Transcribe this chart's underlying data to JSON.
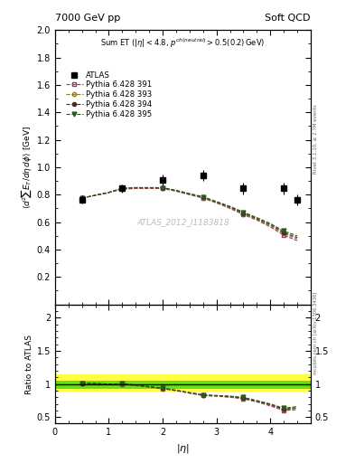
{
  "title_left": "7000 GeV pp",
  "title_right": "Soft QCD",
  "annotation": "ATLAS_2012_I1183818",
  "ylabel_main": "$\\langle d^2\\!\\sum E_T/d\\eta\\,d\\phi\\rangle$ [GeV]",
  "ylabel_ratio": "Ratio to ATLAS",
  "xlabel": "$|\\eta|$",
  "xlim": [
    0,
    4.75
  ],
  "ylim_main": [
    0.0,
    2.0
  ],
  "ylim_ratio": [
    0.4,
    2.2
  ],
  "yticks_main": [
    0.2,
    0.4,
    0.6,
    0.8,
    1.0,
    1.2,
    1.4,
    1.6,
    1.8,
    2.0
  ],
  "yticks_ratio": [
    0.5,
    1.0,
    1.5,
    2.0
  ],
  "atlas_x": [
    0.5,
    1.25,
    2.0,
    2.75,
    3.5,
    4.25,
    4.5
  ],
  "atlas_y": [
    0.765,
    0.845,
    0.91,
    0.94,
    0.845,
    0.845,
    0.76
  ],
  "atlas_yerr": [
    0.03,
    0.03,
    0.04,
    0.04,
    0.04,
    0.04,
    0.04
  ],
  "atlas_xw": [
    0.375,
    0.375,
    0.375,
    0.375,
    0.375,
    0.375,
    0.25
  ],
  "mc_x": [
    0.5,
    0.75,
    1.0,
    1.25,
    1.5,
    1.75,
    2.0,
    2.25,
    2.5,
    2.75,
    3.0,
    3.25,
    3.5,
    3.75,
    4.0,
    4.25,
    4.5
  ],
  "mc391_y": [
    0.775,
    0.795,
    0.815,
    0.84,
    0.845,
    0.845,
    0.845,
    0.825,
    0.8,
    0.775,
    0.74,
    0.7,
    0.655,
    0.615,
    0.565,
    0.505,
    0.465
  ],
  "mc393_y": [
    0.775,
    0.795,
    0.815,
    0.845,
    0.848,
    0.848,
    0.848,
    0.828,
    0.802,
    0.778,
    0.742,
    0.704,
    0.66,
    0.62,
    0.574,
    0.517,
    0.478
  ],
  "mc394_y": [
    0.775,
    0.796,
    0.816,
    0.846,
    0.85,
    0.85,
    0.85,
    0.83,
    0.805,
    0.782,
    0.747,
    0.71,
    0.666,
    0.626,
    0.582,
    0.524,
    0.488
  ],
  "mc395_y": [
    0.775,
    0.796,
    0.817,
    0.847,
    0.852,
    0.852,
    0.851,
    0.832,
    0.808,
    0.785,
    0.75,
    0.715,
    0.673,
    0.633,
    0.59,
    0.535,
    0.5
  ],
  "color391": "#8b3a6a",
  "color393": "#8b7020",
  "color394": "#4a2a1a",
  "color395": "#2a5a20",
  "band_yellow_lo": 0.88,
  "band_yellow_hi": 1.15,
  "band_green_lo": 0.93,
  "band_green_hi": 1.05,
  "rivet_label": "Rivet 3.1.10, ≥ 2.7M events",
  "mcplots_label": "mcplots.cern.ch [arXiv:1306.3436]"
}
